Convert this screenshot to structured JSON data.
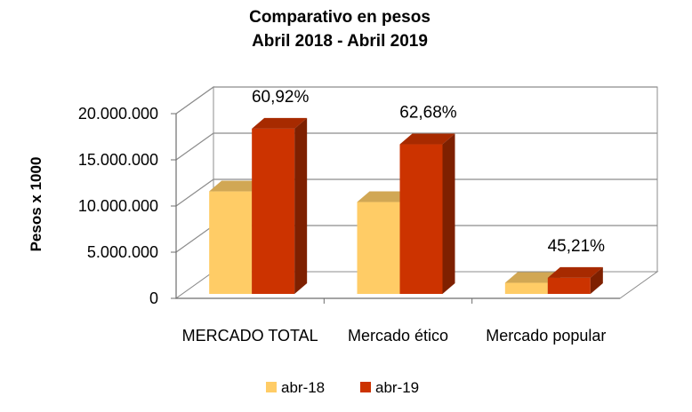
{
  "chart_data": {
    "type": "bar",
    "title": [
      "Comparativo en pesos",
      "Abril 2018 - Abril 2019"
    ],
    "ylabel": "Pesos x 1000",
    "xlabel": "",
    "categories": [
      "MERCADO TOTAL",
      "Mercado ético",
      "Mercado popular"
    ],
    "series": [
      {
        "name": "abr-18",
        "color": "#FFCC66",
        "values": [
          11100000,
          9950000,
          1200000
        ]
      },
      {
        "name": "abr-19",
        "color": "#CC3300",
        "values": [
          17900000,
          16200000,
          1740000
        ]
      }
    ],
    "data_labels": [
      "60,92%",
      "62,68%",
      "45,21%"
    ],
    "ylim": [
      0,
      20000000
    ],
    "yticks": [
      {
        "value": 0,
        "label": "0"
      },
      {
        "value": 5000000,
        "label": "5.000.000"
      },
      {
        "value": 10000000,
        "label": "10.000.000"
      },
      {
        "value": 15000000,
        "label": "15.000.000"
      },
      {
        "value": 20000000,
        "label": "20.000.000"
      }
    ],
    "grid": true,
    "legend_position": "bottom"
  }
}
